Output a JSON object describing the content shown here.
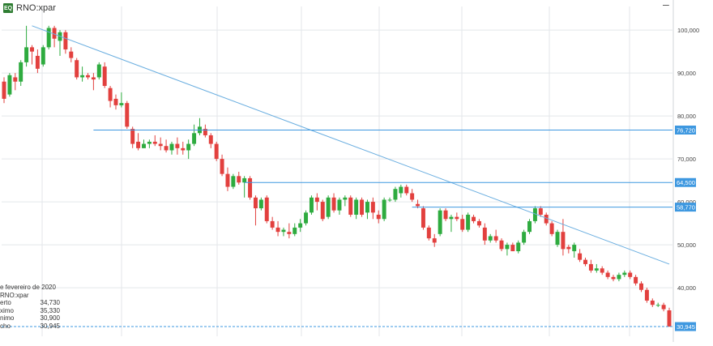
{
  "header": {
    "badge": "EQ",
    "symbol": "RNO:xpar",
    "minimize_label": "–"
  },
  "info_panel": {
    "date": "e fevereiro de 2020",
    "symbol": "RNO:xpar",
    "rows": [
      {
        "label": "erto",
        "value": "34,730"
      },
      {
        "label": "ximo",
        "value": "35,330"
      },
      {
        "label": "nimo",
        "value": "30,900"
      },
      {
        "label": "cho",
        "value": "30,945"
      }
    ]
  },
  "colors": {
    "up": "#2eab3f",
    "down": "#e2403e",
    "trendline": "#6aaee0",
    "level": "#3e98e0",
    "grid": "#e3e6ea",
    "last": "#3e98e0"
  },
  "chart_data": {
    "type": "candlestick",
    "title": "RNO:xpar",
    "ylim": [
      28500,
      105500
    ],
    "y_ticks": [
      40000,
      50000,
      60000,
      70000,
      80000,
      90000,
      100000
    ],
    "y_tick_labels": [
      "40,000",
      "50,000",
      "60,000",
      "70,000",
      "80,000",
      "90,000",
      "100,000"
    ],
    "grid": true,
    "ohlc": [
      [
        88000,
        89000,
        83000,
        84000
      ],
      [
        85000,
        90000,
        84500,
        89500
      ],
      [
        89000,
        90000,
        86000,
        88000
      ],
      [
        88000,
        93000,
        87000,
        92500
      ],
      [
        92500,
        101000,
        91500,
        96000
      ],
      [
        96000,
        96500,
        92000,
        95000
      ],
      [
        94000,
        95500,
        90000,
        91000
      ],
      [
        92000,
        96500,
        91500,
        96000
      ],
      [
        96000,
        101000,
        95500,
        100500
      ],
      [
        100500,
        101000,
        96000,
        98000
      ],
      [
        97500,
        100000,
        94000,
        99500
      ],
      [
        99500,
        100000,
        94500,
        95500
      ],
      [
        95000,
        96000,
        92500,
        93500
      ],
      [
        93000,
        93500,
        88500,
        89000
      ],
      [
        89000,
        91500,
        88000,
        89500
      ],
      [
        89500,
        90000,
        88500,
        89000
      ],
      [
        89000,
        90000,
        86000,
        88500
      ],
      [
        89000,
        92500,
        88500,
        92000
      ],
      [
        91500,
        92500,
        86500,
        87000
      ],
      [
        86500,
        87000,
        82000,
        83500
      ],
      [
        84000,
        85000,
        81500,
        82500
      ],
      [
        82500,
        85500,
        82000,
        83000
      ],
      [
        83000,
        83500,
        77000,
        77500
      ],
      [
        77000,
        77500,
        72500,
        73500
      ],
      [
        74000,
        76000,
        72000,
        72500
      ],
      [
        72500,
        74500,
        72500,
        73500
      ],
      [
        73500,
        74500,
        72500,
        74000
      ],
      [
        74000,
        75500,
        73000,
        73500
      ],
      [
        73500,
        75000,
        72000,
        73000
      ],
      [
        73000,
        74500,
        71500,
        72000
      ],
      [
        72000,
        74000,
        71000,
        73500
      ],
      [
        73500,
        75000,
        71000,
        72500
      ],
      [
        72500,
        74000,
        71000,
        72000
      ],
      [
        72000,
        74500,
        70000,
        73500
      ],
      [
        73500,
        78000,
        73000,
        76000
      ],
      [
        76000,
        79500,
        75500,
        77500
      ],
      [
        77000,
        78000,
        75000,
        75500
      ],
      [
        75500,
        76000,
        72500,
        73500
      ],
      [
        73500,
        74000,
        69500,
        70000
      ],
      [
        70000,
        71000,
        66000,
        66500
      ],
      [
        66500,
        68000,
        62500,
        63500
      ],
      [
        63500,
        66500,
        63000,
        66000
      ],
      [
        66000,
        67000,
        64000,
        64500
      ],
      [
        64500,
        66000,
        61000,
        65500
      ],
      [
        65500,
        66000,
        60500,
        61000
      ],
      [
        61000,
        61500,
        54500,
        58500
      ],
      [
        58500,
        61000,
        58000,
        60500
      ],
      [
        61000,
        61500,
        55000,
        55500
      ],
      [
        55500,
        56500,
        53500,
        54000
      ],
      [
        54000,
        55500,
        52000,
        53000
      ],
      [
        53000,
        54000,
        52000,
        53500
      ],
      [
        53000,
        55000,
        51500,
        52500
      ],
      [
        52500,
        55000,
        52000,
        54000
      ],
      [
        54000,
        56000,
        53000,
        55000
      ],
      [
        55000,
        58000,
        54500,
        57500
      ],
      [
        57500,
        61500,
        57000,
        61000
      ],
      [
        61000,
        62000,
        58000,
        60000
      ],
      [
        60000,
        60500,
        55500,
        56000
      ],
      [
        56500,
        61500,
        56000,
        61000
      ],
      [
        61000,
        62000,
        57500,
        58000
      ],
      [
        58000,
        61000,
        57000,
        60500
      ],
      [
        60500,
        61500,
        59000,
        61000
      ],
      [
        61000,
        61500,
        56500,
        57000
      ],
      [
        57000,
        61000,
        56000,
        60500
      ],
      [
        60500,
        61000,
        56500,
        57000
      ],
      [
        57500,
        60500,
        56000,
        60000
      ],
      [
        60000,
        61000,
        56000,
        57500
      ],
      [
        57000,
        58000,
        55000,
        56000
      ],
      [
        56000,
        61000,
        55500,
        60500
      ],
      [
        60500,
        61000,
        60000,
        60500
      ],
      [
        60500,
        63500,
        60000,
        63000
      ],
      [
        62000,
        64000,
        61000,
        63500
      ],
      [
        63500,
        64000,
        61500,
        62000
      ],
      [
        62000,
        63000,
        60000,
        60500
      ],
      [
        59500,
        60500,
        58500,
        59000
      ],
      [
        58500,
        59000,
        53500,
        54000
      ],
      [
        54000,
        54500,
        51000,
        51500
      ],
      [
        51500,
        52500,
        49500,
        50500
      ],
      [
        52500,
        58500,
        52000,
        58000
      ],
      [
        58000,
        58500,
        55500,
        56000
      ],
      [
        56000,
        57000,
        53000,
        56500
      ],
      [
        56500,
        57500,
        55500,
        56000
      ],
      [
        56000,
        57000,
        53000,
        53500
      ],
      [
        53500,
        57500,
        53000,
        57000
      ],
      [
        56500,
        57000,
        55000,
        55500
      ],
      [
        55500,
        56000,
        54000,
        54500
      ],
      [
        54000,
        55000,
        50000,
        51000
      ],
      [
        51000,
        52500,
        50500,
        52000
      ],
      [
        52000,
        53500,
        50500,
        51000
      ],
      [
        51000,
        51500,
        48500,
        49000
      ],
      [
        49000,
        50500,
        47500,
        50000
      ],
      [
        50000,
        50500,
        48500,
        48500
      ],
      [
        48500,
        51000,
        48000,
        50500
      ],
      [
        50500,
        53500,
        50000,
        53000
      ],
      [
        53000,
        56000,
        52500,
        55500
      ],
      [
        55500,
        59000,
        55000,
        58500
      ],
      [
        58500,
        59000,
        56500,
        57000
      ],
      [
        57000,
        57500,
        54500,
        55000
      ],
      [
        55000,
        55500,
        52000,
        52500
      ],
      [
        50000,
        53500,
        49500,
        53000
      ],
      [
        53000,
        56000,
        47500,
        49000
      ],
      [
        49500,
        50000,
        48000,
        49000
      ],
      [
        48500,
        50500,
        47000,
        50000
      ],
      [
        48000,
        49000,
        46000,
        46500
      ],
      [
        46500,
        47000,
        45000,
        45500
      ],
      [
        45500,
        46500,
        43500,
        44000
      ],
      [
        44000,
        45500,
        43500,
        44500
      ],
      [
        44500,
        45000,
        43000,
        43500
      ],
      [
        43500,
        44000,
        42000,
        42500
      ],
      [
        42500,
        43000,
        41500,
        42000
      ],
      [
        42000,
        43500,
        41500,
        43000
      ],
      [
        43000,
        44000,
        42500,
        43500
      ],
      [
        43500,
        44000,
        42000,
        42500
      ],
      [
        42500,
        43000,
        40500,
        41000
      ],
      [
        41000,
        41500,
        39000,
        39500
      ],
      [
        39500,
        40000,
        36500,
        37000
      ],
      [
        37000,
        37500,
        35500,
        36000
      ],
      [
        36000,
        36500,
        35500,
        36000
      ],
      [
        36000,
        36500,
        34500,
        35000
      ],
      [
        34730,
        35330,
        30900,
        30945
      ]
    ],
    "trendline": {
      "from": [
        5,
        101000
      ],
      "to": [
        119,
        45500
      ]
    },
    "levels": [
      {
        "value": 76720,
        "label": "76,720",
        "from": 16
      },
      {
        "value": 64500,
        "label": "64,500",
        "from": 43
      },
      {
        "value": 58770,
        "label": "58,770",
        "from": 73
      }
    ],
    "last_price": {
      "value": 30945,
      "label": "30,945"
    }
  }
}
